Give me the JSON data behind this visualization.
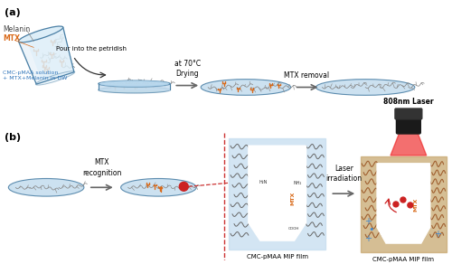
{
  "bg_color": "#ffffff",
  "light_blue": "#c5ddef",
  "medium_blue": "#a8cce0",
  "dark_blue": "#4a7fa5",
  "orange": "#d96a1a",
  "dark_gray": "#666666",
  "brown": "#a06030",
  "label_a": "(a)",
  "label_b": "(b)",
  "text_melanin": "Melanin",
  "text_mtx_label": "MTX",
  "text_solution": "CMC-pMAA solution\n+ MTX+Melanin in DW",
  "text_pour": "Pour into the petridish",
  "text_drying": "at 70°C\nDrying",
  "text_removal": "MTX removal",
  "text_laser": "808nm Laser",
  "text_recognition": "MTX\nrecognition",
  "text_irradiation": "Laser\nirradiation",
  "text_mip1": "CMC-pMAA MIP film",
  "text_mip2": "CMC-pMAA MIP film"
}
